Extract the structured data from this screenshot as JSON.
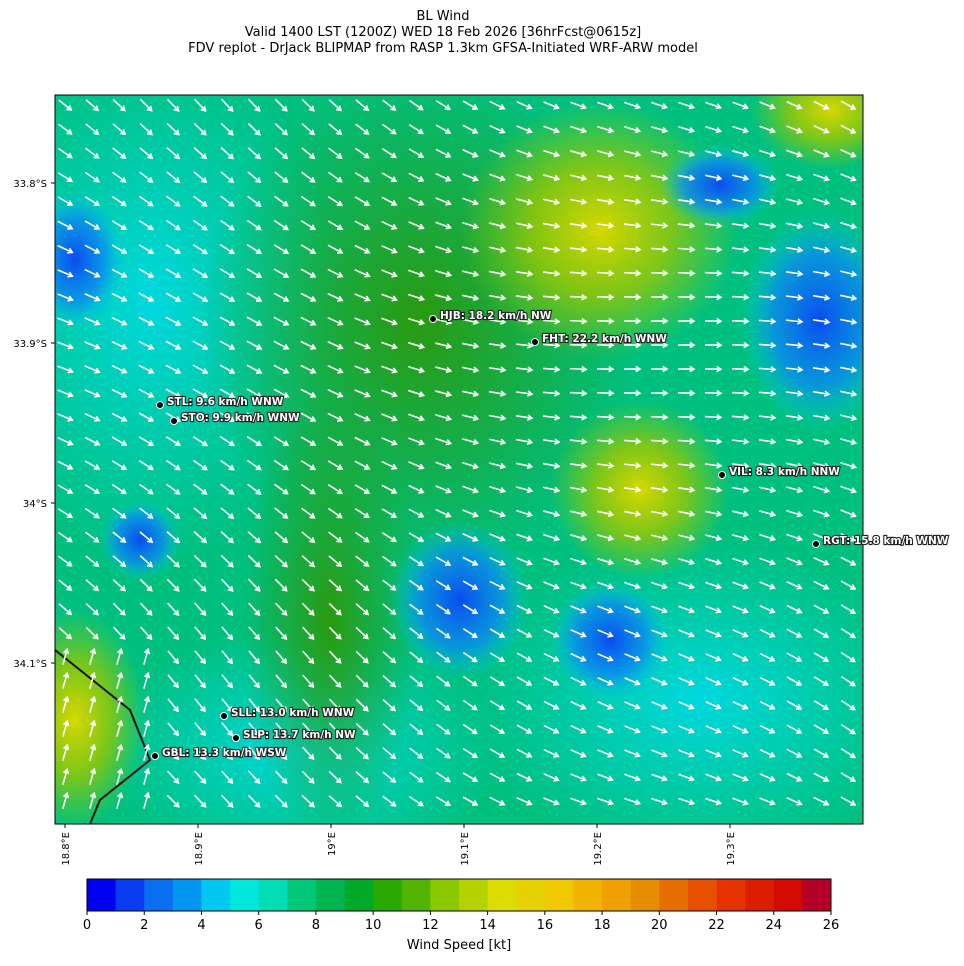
{
  "title": [
    "BL Wind",
    "Valid 1400 LST (1200Z) WED 18 Feb 2026 [36hrFcst@0615z]",
    "FDV replot - DrJack BLIPMAP from RASP 1.3km GFSA-Initiated WRF-ARW model"
  ],
  "map": {
    "lat_labels": [
      {
        "value": -33.8,
        "label": "33.8°S"
      },
      {
        "value": -33.9,
        "label": "33.9°S"
      },
      {
        "value": -34.0,
        "label": "34°S"
      },
      {
        "value": -34.1,
        "label": "34.1°S"
      }
    ],
    "lon_labels": [
      {
        "value": 18.8,
        "label": "18.8°E"
      },
      {
        "value": 18.9,
        "label": "18.9°E"
      },
      {
        "value": 19.0,
        "label": "19°E"
      },
      {
        "value": 19.1,
        "label": "19.1°E"
      },
      {
        "value": 19.2,
        "label": "19.2°E"
      },
      {
        "value": 19.3,
        "label": "19.3°E"
      }
    ],
    "stations": [
      "STL: 9.6 km/h WNW",
      "STO: 9.9 km/h WNW",
      "HJB: 18.2 km/h NW",
      "FHT: 22.2 km/h WNW",
      "VIL: 8.3 km/h NNW",
      "RGT: 15.8 km/h WNW",
      "SLL: 13.0 km/h WNW",
      "SLP: 13.7 km/h NW",
      "GBL: 13.3 km/h WSW"
    ]
  },
  "colorbar": {
    "label": "Wind Speed [kt]",
    "lim": [
      0,
      26
    ],
    "ticks": [
      0,
      2,
      4,
      6,
      8,
      10,
      12,
      14,
      16,
      18,
      20,
      22,
      24,
      26
    ],
    "colors": [
      "#0000f0",
      "#0a3cf0",
      "#0a6ef0",
      "#0096f0",
      "#00c8f0",
      "#00e6dc",
      "#00dcb4",
      "#00c878",
      "#00b450",
      "#00aa28",
      "#28aa00",
      "#50b400",
      "#8cc800",
      "#b4d200",
      "#dcdc00",
      "#e6d200",
      "#f0c800",
      "#f0b400",
      "#f0a000",
      "#e68c00",
      "#e66e00",
      "#e65000",
      "#e63200",
      "#dc1e00",
      "#d20a00",
      "#b40028"
    ]
  }
}
